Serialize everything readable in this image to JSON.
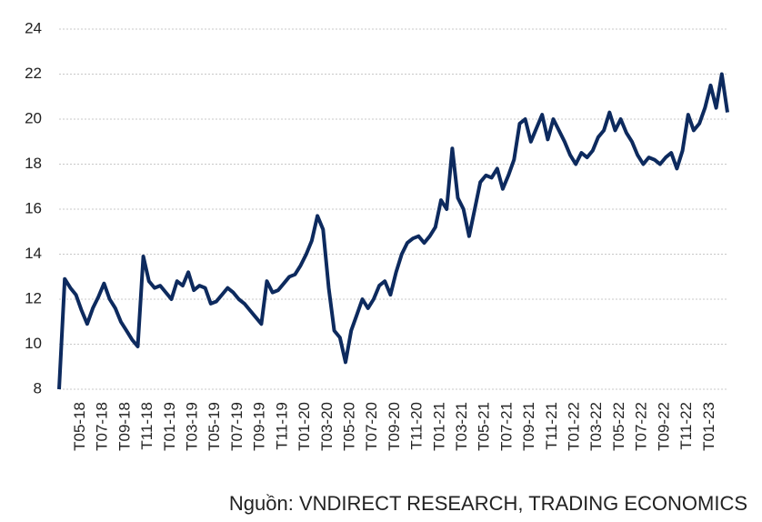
{
  "chart_data": {
    "type": "line",
    "source": "Nguồn: VNDIRECT RESEARCH, TRADING ECONOMICS",
    "categories": [
      null,
      null,
      null,
      "T05-18",
      null,
      null,
      null,
      "T07-18",
      null,
      null,
      null,
      "T09-18",
      null,
      null,
      null,
      "T11-18",
      null,
      null,
      null,
      "T01-19",
      null,
      null,
      null,
      "T03-19",
      null,
      null,
      null,
      "T05-19",
      null,
      null,
      null,
      "T07-19",
      null,
      null,
      null,
      "T09-19",
      null,
      null,
      null,
      "T11-19",
      null,
      null,
      null,
      "T01-20",
      null,
      null,
      null,
      "T03-20",
      null,
      null,
      null,
      "T05-20",
      null,
      null,
      null,
      "T07-20",
      null,
      null,
      null,
      "T09-20",
      null,
      null,
      null,
      "T11-20",
      null,
      null,
      null,
      "T01-21",
      null,
      null,
      null,
      "T03-21",
      null,
      null,
      null,
      "T05-21",
      null,
      null,
      null,
      "T07-21",
      null,
      null,
      null,
      "T09-21",
      null,
      null,
      null,
      "T11-21",
      null,
      null,
      null,
      "T01-22",
      null,
      null,
      null,
      "T03-22",
      null,
      null,
      null,
      "T05-22",
      null,
      null,
      null,
      "T07-22",
      null,
      null,
      null,
      "T09-22",
      null,
      null,
      null,
      "T11-22",
      null,
      null,
      null,
      "T01-23",
      null,
      null,
      null,
      null
    ],
    "values": [
      8.0,
      12.9,
      12.5,
      12.2,
      11.5,
      10.9,
      11.6,
      12.1,
      12.7,
      12.0,
      11.6,
      11.0,
      10.6,
      10.2,
      9.9,
      13.9,
      12.8,
      12.5,
      12.6,
      12.3,
      12.0,
      12.8,
      12.6,
      13.2,
      12.4,
      12.6,
      12.5,
      11.8,
      11.9,
      12.2,
      12.5,
      12.3,
      12.0,
      11.8,
      11.5,
      11.2,
      10.9,
      12.8,
      12.3,
      12.4,
      12.7,
      13.0,
      13.1,
      13.5,
      14.0,
      14.6,
      15.7,
      15.1,
      12.5,
      10.6,
      10.3,
      9.2,
      10.6,
      11.3,
      12.0,
      11.6,
      12.0,
      12.6,
      12.8,
      12.2,
      13.2,
      14.0,
      14.5,
      14.7,
      14.8,
      14.5,
      14.8,
      15.2,
      16.4,
      16.0,
      18.7,
      16.5,
      16.0,
      14.8,
      16.0,
      17.2,
      17.5,
      17.4,
      17.8,
      16.9,
      17.5,
      18.2,
      19.8,
      20.0,
      19.0,
      19.6,
      20.2,
      19.1,
      20.0,
      19.5,
      19.0,
      18.4,
      18.0,
      18.5,
      18.3,
      18.6,
      19.2,
      19.5,
      20.3,
      19.5,
      20.0,
      19.4,
      19.0,
      18.4,
      18.0,
      18.3,
      18.2,
      18.0,
      18.3,
      18.5,
      17.8,
      18.6,
      20.2,
      19.5,
      19.8,
      20.5,
      21.5,
      20.5,
      22.0,
      20.3
    ],
    "color": "#0d2a5e",
    "ylim": [
      8,
      24
    ],
    "yticks": [
      8,
      10,
      12,
      14,
      16,
      18,
      20,
      22,
      24
    ],
    "grid": true
  }
}
